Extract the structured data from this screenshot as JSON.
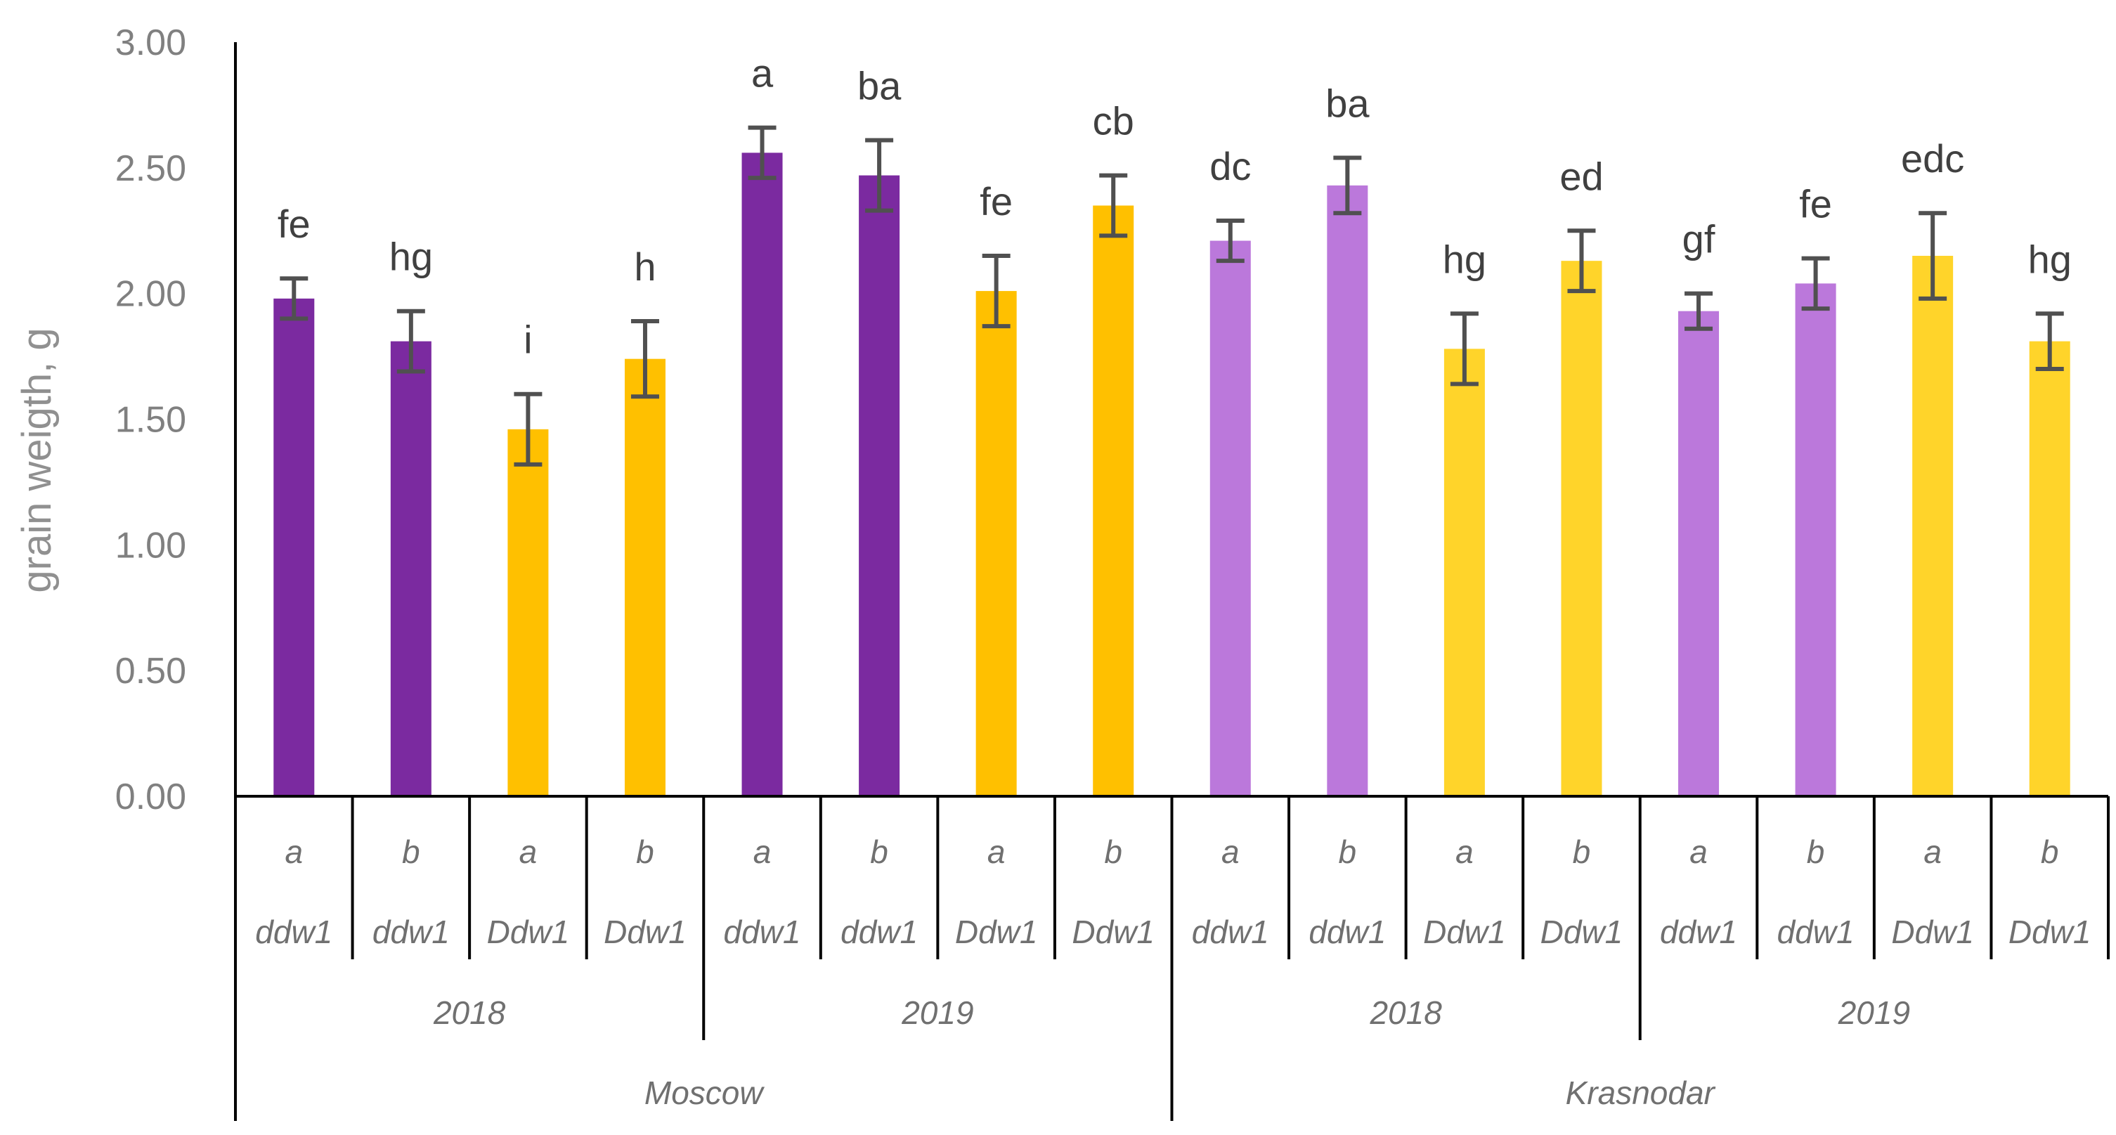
{
  "chart_data": {
    "type": "bar",
    "ylabel": "grain weigth, g",
    "ylim": [
      0,
      3.0
    ],
    "yticks": [
      "0.00",
      "0.50",
      "1.00",
      "1.50",
      "2.00",
      "2.50",
      "3.00"
    ],
    "grid": false,
    "legend": "none",
    "level1": [
      "a",
      "b",
      "a",
      "b",
      "a",
      "b",
      "a",
      "b",
      "a",
      "b",
      "a",
      "b",
      "a",
      "b",
      "a",
      "b"
    ],
    "level2": [
      "ddw1",
      "ddw1",
      "Ddw1",
      "Ddw1",
      "ddw1",
      "ddw1",
      "Ddw1",
      "Ddw1",
      "ddw1",
      "ddw1",
      "Ddw1",
      "Ddw1",
      "ddw1",
      "ddw1",
      "Ddw1",
      "Ddw1"
    ],
    "level3": [
      "2018",
      "2019",
      "2018",
      "2019"
    ],
    "level4": [
      "Moscow",
      "Krasnodar"
    ],
    "values": [
      1.98,
      1.81,
      1.46,
      1.74,
      2.56,
      2.47,
      2.01,
      2.35,
      2.21,
      2.43,
      1.78,
      2.13,
      1.93,
      2.04,
      2.15,
      1.81
    ],
    "errors": [
      0.08,
      0.12,
      0.14,
      0.15,
      0.1,
      0.14,
      0.14,
      0.12,
      0.08,
      0.11,
      0.14,
      0.12,
      0.07,
      0.1,
      0.17,
      0.11
    ],
    "significance": [
      "fe",
      "hg",
      "i",
      "h",
      "a",
      "ba",
      "fe",
      "cb",
      "dc",
      "ba",
      "hg",
      "ed",
      "gf",
      "fe",
      "edc",
      "hg"
    ],
    "colors": [
      "#7B2AA0",
      "#7B2AA0",
      "#FFC000",
      "#FFC000",
      "#7B2AA0",
      "#7B2AA0",
      "#FFC000",
      "#FFC000",
      "#BB78DB",
      "#BB78DB",
      "#FFD42A",
      "#FFD42A",
      "#BB78DB",
      "#BB78DB",
      "#FFD42A",
      "#FFD42A"
    ]
  }
}
